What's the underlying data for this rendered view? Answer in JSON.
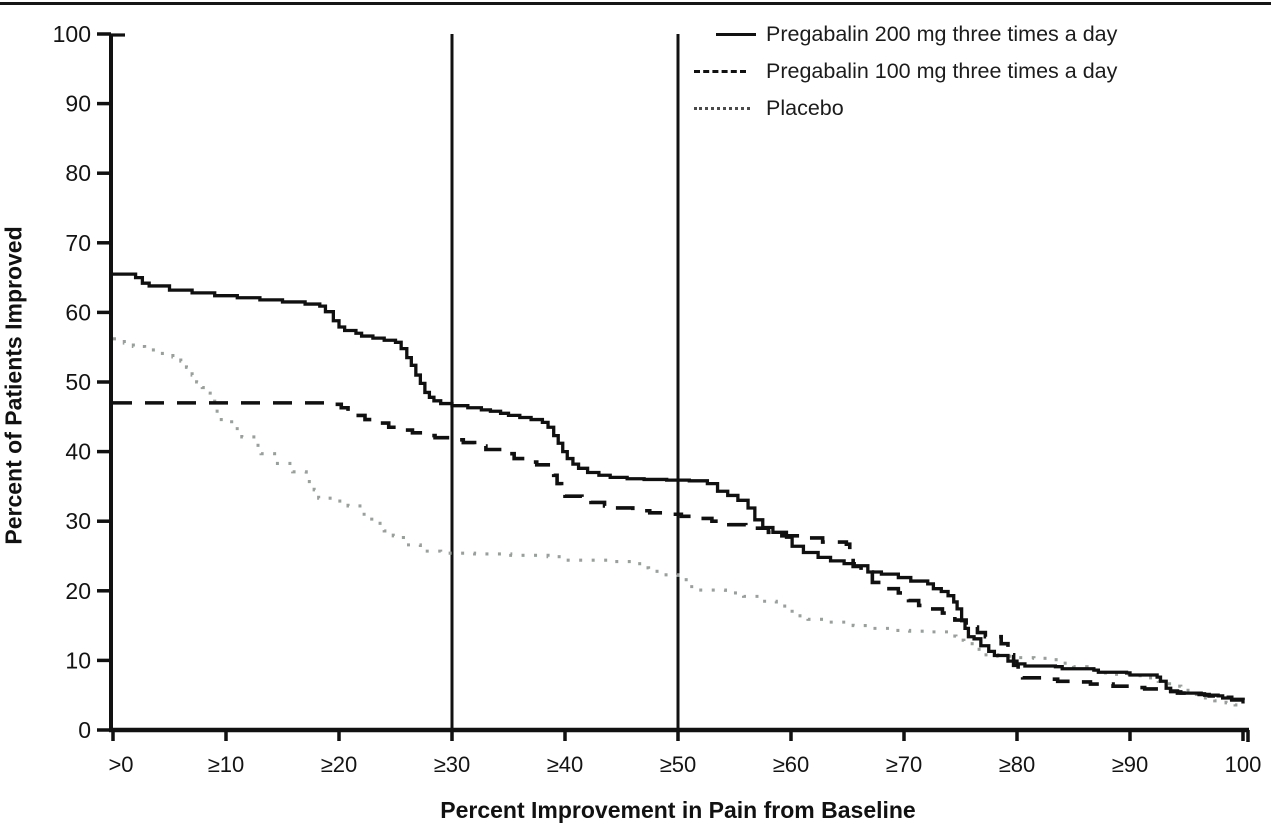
{
  "figure": {
    "x_axis_title": "Percent Improvement in Pain from Baseline",
    "y_axis_title": "Percent of Patients Improved"
  },
  "chart_data": {
    "type": "line",
    "subtype": "step-responder-curves",
    "title": "",
    "xlabel": "Percent Improvement in Pain from Baseline",
    "ylabel": "Percent of Patients Improved",
    "xlim": [
      0,
      100
    ],
    "ylim": [
      0,
      100
    ],
    "grid": false,
    "legend_position": "top-right",
    "x_tick_labels": [
      ">0",
      "≥10",
      "≥20",
      "≥30",
      "≥40",
      "≥50",
      "≥60",
      "≥70",
      "≥80",
      "≥90",
      "100"
    ],
    "x_tick_values": [
      0,
      10,
      20,
      30,
      40,
      50,
      60,
      70,
      80,
      90,
      100
    ],
    "y_tick_values": [
      0,
      10,
      20,
      30,
      40,
      50,
      60,
      70,
      80,
      90,
      100
    ],
    "reference_lines_x": [
      30,
      50
    ],
    "axis_color": "#111111",
    "series": [
      {
        "name": "Pregabalin 200 mg three times a day",
        "style": "solid",
        "color": "#101010",
        "width": 3.3,
        "dash": "",
        "points": [
          [
            0,
            65.5
          ],
          [
            1.5,
            65.5
          ],
          [
            2,
            65
          ],
          [
            2.6,
            64.2
          ],
          [
            3.2,
            63.8
          ],
          [
            5,
            63.2
          ],
          [
            7,
            62.8
          ],
          [
            9,
            62.4
          ],
          [
            11,
            62.1
          ],
          [
            13,
            61.8
          ],
          [
            15,
            61.5
          ],
          [
            17,
            61.2
          ],
          [
            18.3,
            60.9
          ],
          [
            18.8,
            60.1
          ],
          [
            19.5,
            58.8
          ],
          [
            20,
            57.9
          ],
          [
            20.5,
            57.4
          ],
          [
            21.5,
            57
          ],
          [
            22,
            56.6
          ],
          [
            23,
            56.3
          ],
          [
            24,
            56
          ],
          [
            25,
            55.7
          ],
          [
            25.5,
            54.8
          ],
          [
            26,
            53.5
          ],
          [
            26.4,
            52.4
          ],
          [
            26.8,
            51
          ],
          [
            27.2,
            49.8
          ],
          [
            27.6,
            48.5
          ],
          [
            28,
            47.8
          ],
          [
            28.4,
            47.3
          ],
          [
            29,
            46.9
          ],
          [
            30,
            46.6
          ],
          [
            31.4,
            46.3
          ],
          [
            32.6,
            46
          ],
          [
            33.4,
            45.8
          ],
          [
            34.3,
            45.5
          ],
          [
            35,
            45.2
          ],
          [
            36,
            44.9
          ],
          [
            37,
            44.6
          ],
          [
            38,
            44.2
          ],
          [
            38.5,
            43.5
          ],
          [
            39,
            42.3
          ],
          [
            39.4,
            41.2
          ],
          [
            39.8,
            40
          ],
          [
            40.2,
            39
          ],
          [
            40.7,
            38.2
          ],
          [
            41.2,
            37.6
          ],
          [
            42,
            37
          ],
          [
            43,
            36.6
          ],
          [
            44,
            36.3
          ],
          [
            45.5,
            36.1
          ],
          [
            47,
            36
          ],
          [
            49,
            35.9
          ],
          [
            51,
            35.8
          ],
          [
            52.6,
            35.4
          ],
          [
            53.5,
            34.3
          ],
          [
            54.4,
            33.7
          ],
          [
            55.3,
            33
          ],
          [
            56.2,
            31.9
          ],
          [
            56.8,
            30.2
          ],
          [
            57.5,
            29.1
          ],
          [
            58.4,
            28.4
          ],
          [
            59.6,
            27.7
          ],
          [
            60.1,
            26.4
          ],
          [
            61.1,
            25.5
          ],
          [
            62.4,
            24.8
          ],
          [
            63.5,
            24.3
          ],
          [
            64.7,
            23.9
          ],
          [
            65.6,
            23.6
          ],
          [
            66.8,
            22.7
          ],
          [
            68,
            22.4
          ],
          [
            69.5,
            21.9
          ],
          [
            70.6,
            21.4
          ],
          [
            72.1,
            21
          ],
          [
            72.6,
            20.3
          ],
          [
            73.3,
            19.9
          ],
          [
            73.9,
            19.3
          ],
          [
            74.4,
            18.4
          ],
          [
            74.7,
            17.4
          ],
          [
            75.1,
            15.7
          ],
          [
            75.4,
            14.6
          ],
          [
            75.7,
            13.4
          ],
          [
            76.2,
            13.1
          ],
          [
            76.8,
            12.1
          ],
          [
            77.5,
            11.3
          ],
          [
            78,
            10.7
          ],
          [
            79.2,
            9.9
          ],
          [
            80,
            9.5
          ],
          [
            80.7,
            9.2
          ],
          [
            83.4,
            9.1
          ],
          [
            84,
            8.8
          ],
          [
            86.8,
            8.6
          ],
          [
            87.2,
            8.3
          ],
          [
            89.7,
            8.2
          ],
          [
            90,
            7.9
          ],
          [
            92.4,
            7.6
          ],
          [
            92.7,
            7
          ],
          [
            93.2,
            6
          ],
          [
            93.6,
            5.5
          ],
          [
            94.5,
            5.3
          ],
          [
            96.3,
            5.2
          ],
          [
            96.6,
            5
          ],
          [
            97.8,
            4.9
          ],
          [
            98.2,
            4.6
          ],
          [
            99,
            4.3
          ],
          [
            100,
            3.8
          ]
        ]
      },
      {
        "name": "Pregabalin 100 mg three times a day",
        "style": "dashed",
        "color": "#101010",
        "width": 3.6,
        "dash": "19 13",
        "points": [
          [
            0,
            47
          ],
          [
            18.8,
            47
          ],
          [
            19.5,
            46.8
          ],
          [
            20.2,
            46.3
          ],
          [
            20.8,
            45.8
          ],
          [
            21.5,
            45.2
          ],
          [
            22.3,
            44.6
          ],
          [
            23.6,
            44.1
          ],
          [
            24.4,
            43.5
          ],
          [
            25.5,
            43.1
          ],
          [
            26.5,
            42.7
          ],
          [
            27.5,
            42.3
          ],
          [
            28.5,
            42
          ],
          [
            29.8,
            41.7
          ],
          [
            31,
            41.3
          ],
          [
            32,
            40.8
          ],
          [
            33,
            40.3
          ],
          [
            34.5,
            39.7
          ],
          [
            35.5,
            39
          ],
          [
            36.5,
            38.5
          ],
          [
            37.5,
            38.1
          ],
          [
            38.7,
            37.6
          ],
          [
            39,
            36.6
          ],
          [
            39.3,
            35.4
          ],
          [
            39.7,
            34.2
          ],
          [
            40,
            33.6
          ],
          [
            41.5,
            33.3
          ],
          [
            42.3,
            32.7
          ],
          [
            43.5,
            32.2
          ],
          [
            44.5,
            31.9
          ],
          [
            46,
            31.5
          ],
          [
            47.5,
            31.2
          ],
          [
            49,
            31
          ],
          [
            50.3,
            30.7
          ],
          [
            51.5,
            30.4
          ],
          [
            53,
            30
          ],
          [
            54.5,
            29.5
          ],
          [
            56,
            29
          ],
          [
            58,
            28.4
          ],
          [
            59,
            27.9
          ],
          [
            61.5,
            27.6
          ],
          [
            62.8,
            27
          ],
          [
            64.9,
            26.7
          ],
          [
            65.2,
            25.6
          ],
          [
            65.5,
            23.5
          ],
          [
            66.2,
            22.7
          ],
          [
            67.2,
            21.2
          ],
          [
            68.2,
            20.3
          ],
          [
            69.5,
            19.7
          ],
          [
            70.4,
            18.6
          ],
          [
            71.3,
            17.9
          ],
          [
            72,
            17.4
          ],
          [
            73.4,
            16.8
          ],
          [
            74.5,
            15.8
          ],
          [
            75.5,
            14.8
          ],
          [
            76.5,
            14
          ],
          [
            77.2,
            13.4
          ],
          [
            78.6,
            12.4
          ],
          [
            79.2,
            10.8
          ],
          [
            79.7,
            9.3
          ],
          [
            80.1,
            8
          ],
          [
            80.5,
            7.5
          ],
          [
            82.4,
            7.3
          ],
          [
            83.6,
            7
          ],
          [
            85.2,
            6.9
          ],
          [
            86.5,
            6.6
          ],
          [
            88.5,
            6.3
          ],
          [
            90,
            6.1
          ],
          [
            91.3,
            5.9
          ],
          [
            92.6,
            5.6
          ],
          [
            94.2,
            5.3
          ],
          [
            95.7,
            5.1
          ],
          [
            97,
            4.9
          ],
          [
            98,
            4.7
          ],
          [
            99,
            4.4
          ],
          [
            100,
            4.2
          ]
        ]
      },
      {
        "name": "Placebo",
        "style": "dotted",
        "color": "#99a09c",
        "width": 3.1,
        "dash": "3 9.5",
        "points": [
          [
            0,
            56.2
          ],
          [
            1,
            55.6
          ],
          [
            1.8,
            55.1
          ],
          [
            2.8,
            54.6
          ],
          [
            4,
            54.1
          ],
          [
            5.3,
            53.6
          ],
          [
            6,
            53
          ],
          [
            6.5,
            52.1
          ],
          [
            7,
            51
          ],
          [
            7.4,
            50
          ],
          [
            7.9,
            49.2
          ],
          [
            8.3,
            48.4
          ],
          [
            8.6,
            47.5
          ],
          [
            9,
            45.8
          ],
          [
            9.4,
            44.6
          ],
          [
            10.5,
            43.3
          ],
          [
            11.4,
            42.1
          ],
          [
            12.6,
            40.9
          ],
          [
            13.1,
            39.7
          ],
          [
            14.3,
            38.3
          ],
          [
            15.9,
            37.1
          ],
          [
            17.1,
            35.7
          ],
          [
            17.8,
            34.5
          ],
          [
            18.2,
            33.3
          ],
          [
            19.7,
            32.9
          ],
          [
            20.8,
            32.2
          ],
          [
            22,
            31
          ],
          [
            22.9,
            29.7
          ],
          [
            24,
            28.6
          ],
          [
            24.8,
            27.9
          ],
          [
            25.7,
            26.6
          ],
          [
            27.2,
            25.7
          ],
          [
            29,
            25.4
          ],
          [
            32,
            25.3
          ],
          [
            35.2,
            25.1
          ],
          [
            38.5,
            24.9
          ],
          [
            40,
            24.4
          ],
          [
            44,
            24.2
          ],
          [
            46,
            23.9
          ],
          [
            46.8,
            23.3
          ],
          [
            47.4,
            22.8
          ],
          [
            48.4,
            22.3
          ],
          [
            50,
            21.6
          ],
          [
            51,
            20.6
          ],
          [
            51.7,
            20.1
          ],
          [
            54.2,
            19.7
          ],
          [
            55.8,
            19.2
          ],
          [
            57.5,
            18.5
          ],
          [
            58.7,
            17.8
          ],
          [
            60.1,
            16.4
          ],
          [
            61.5,
            15.9
          ],
          [
            63.1,
            15.5
          ],
          [
            65.5,
            15
          ],
          [
            67,
            14.6
          ],
          [
            68.8,
            14.3
          ],
          [
            70.5,
            14.2
          ],
          [
            72.4,
            14.1
          ],
          [
            73.9,
            13.5
          ],
          [
            74.6,
            12.9
          ],
          [
            75.3,
            12.4
          ],
          [
            76.2,
            11.6
          ],
          [
            77,
            10.8
          ],
          [
            78.3,
            10.6
          ],
          [
            80,
            10.4
          ],
          [
            81.5,
            10.3
          ],
          [
            83,
            10.1
          ],
          [
            84,
            9.6
          ],
          [
            85,
            9.1
          ],
          [
            86.2,
            8.6
          ],
          [
            87.2,
            8.2
          ],
          [
            88.5,
            8
          ],
          [
            90,
            7.8
          ],
          [
            91.4,
            7.5
          ],
          [
            92.5,
            7
          ],
          [
            93.5,
            6.3
          ],
          [
            94.5,
            5.7
          ],
          [
            95.5,
            5.1
          ],
          [
            96.5,
            4.6
          ],
          [
            97.5,
            4.2
          ],
          [
            98.5,
            3.9
          ],
          [
            99.3,
            3.6
          ],
          [
            100,
            3.5
          ]
        ]
      }
    ]
  }
}
